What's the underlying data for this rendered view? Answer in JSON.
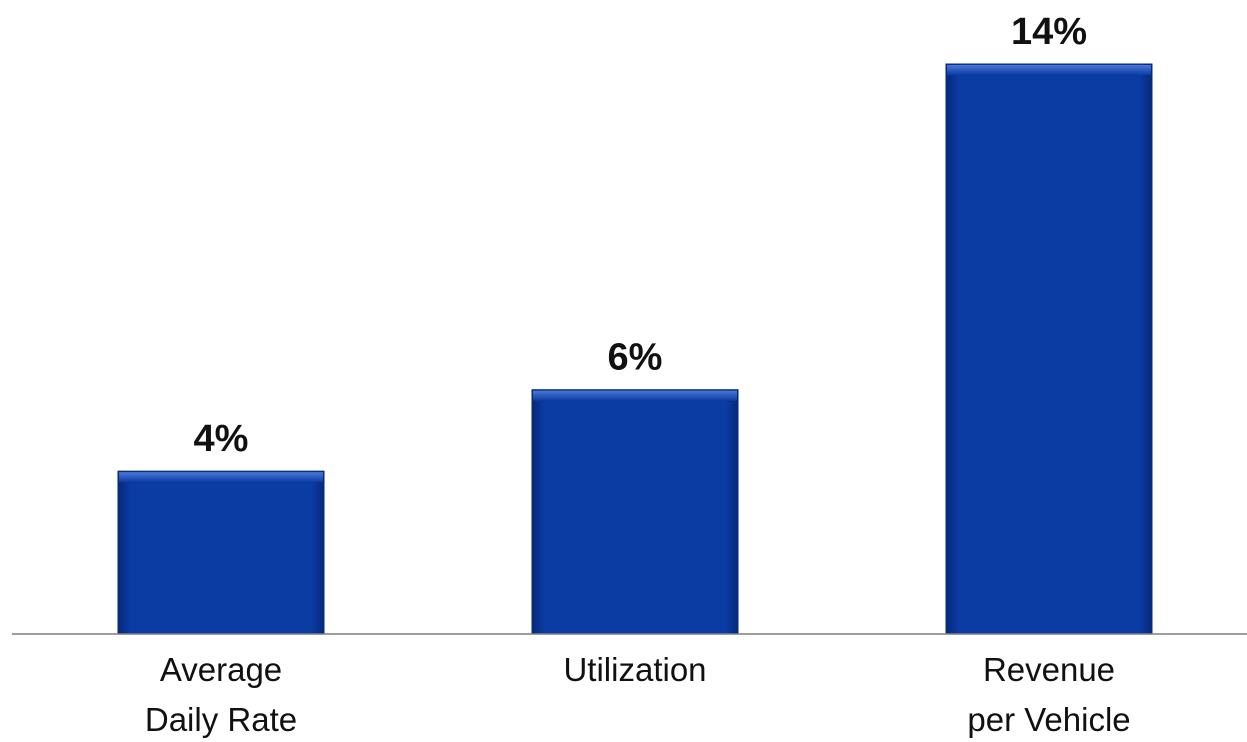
{
  "colors": {
    "bar_fill": "#0a3a9e",
    "bar_dark": "#062a78",
    "bar_highlight": "#3d6ad0",
    "axis": "#7f7f7f",
    "text": "#111111"
  },
  "chart_data": {
    "type": "bar",
    "categories": [
      [
        "Average",
        "Daily Rate"
      ],
      [
        "Utilization"
      ],
      [
        "Revenue",
        "per Vehicle"
      ]
    ],
    "values": [
      4,
      6,
      14
    ],
    "value_labels": [
      "4%",
      "6%",
      "14%"
    ],
    "title": "",
    "xlabel": "",
    "ylabel": "",
    "ylim": [
      0,
      14
    ],
    "grid": false,
    "legend": "none"
  }
}
